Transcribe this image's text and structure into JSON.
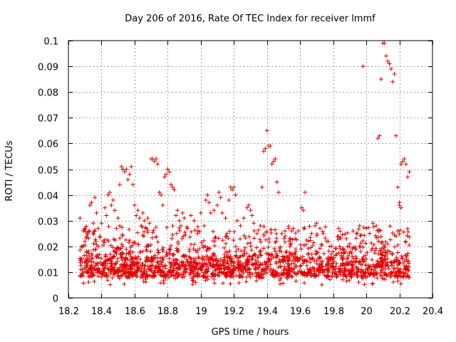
{
  "chart_data": {
    "type": "scatter",
    "title": "Day 206 of 2016, Rate Of TEC Index for receiver lmmf",
    "xlabel": "GPS time / hours",
    "ylabel": "ROTI / TECUs",
    "xlim": [
      18.2,
      20.4
    ],
    "ylim": [
      0,
      0.1
    ],
    "x_ticks": [
      18.2,
      18.4,
      18.6,
      18.8,
      19.0,
      19.2,
      19.4,
      19.6,
      19.8,
      20.0,
      20.2,
      20.4
    ],
    "x_tick_labels": [
      "18.2",
      "18.4",
      "18.6",
      "18.8",
      "19",
      "19.2",
      "19.4",
      "19.6",
      "19.8",
      "20",
      "20.2",
      "20.4"
    ],
    "y_ticks": [
      0,
      0.01,
      0.02,
      0.03,
      0.04,
      0.05,
      0.06,
      0.07,
      0.08,
      0.09,
      0.1
    ],
    "y_tick_labels": [
      "0",
      "0.01",
      "0.02",
      "0.03",
      "0.04",
      "0.05",
      "0.06",
      "0.07",
      "0.08",
      "0.09",
      "0.1"
    ],
    "grid": true,
    "marker": "+",
    "color": "#e00000",
    "series": [
      {
        "name": "ROTI",
        "points": [
          [
            18.27,
            0.031
          ],
          [
            18.28,
            0.02
          ],
          [
            18.29,
            0.026
          ],
          [
            18.3,
            0.022
          ],
          [
            18.31,
            0.018
          ],
          [
            18.32,
            0.014
          ],
          [
            18.33,
            0.036
          ],
          [
            18.34,
            0.037
          ],
          [
            18.35,
            0.029
          ],
          [
            18.36,
            0.039
          ],
          [
            18.37,
            0.033
          ],
          [
            18.38,
            0.027
          ],
          [
            18.39,
            0.024
          ],
          [
            18.4,
            0.029
          ],
          [
            18.41,
            0.022
          ],
          [
            18.42,
            0.035
          ],
          [
            18.43,
            0.032
          ],
          [
            18.44,
            0.04
          ],
          [
            18.45,
            0.041
          ],
          [
            18.46,
            0.036
          ],
          [
            18.47,
            0.038
          ],
          [
            18.48,
            0.034
          ],
          [
            18.49,
            0.027
          ],
          [
            18.5,
            0.031
          ],
          [
            18.51,
            0.044
          ],
          [
            18.52,
            0.051
          ],
          [
            18.53,
            0.05
          ],
          [
            18.54,
            0.049
          ],
          [
            18.55,
            0.05
          ],
          [
            18.56,
            0.046
          ],
          [
            18.57,
            0.048
          ],
          [
            18.58,
            0.051
          ],
          [
            18.59,
            0.044
          ],
          [
            18.6,
            0.036
          ],
          [
            18.61,
            0.032
          ],
          [
            18.62,
            0.034
          ],
          [
            18.63,
            0.031
          ],
          [
            18.64,
            0.028
          ],
          [
            18.65,
            0.033
          ],
          [
            18.66,
            0.03
          ],
          [
            18.67,
            0.027
          ],
          [
            18.68,
            0.031
          ],
          [
            18.69,
            0.029
          ],
          [
            18.7,
            0.054
          ],
          [
            18.71,
            0.054
          ],
          [
            18.72,
            0.053
          ],
          [
            18.73,
            0.054
          ],
          [
            18.74,
            0.052
          ],
          [
            18.75,
            0.041
          ],
          [
            18.76,
            0.04
          ],
          [
            18.77,
            0.036
          ],
          [
            18.78,
            0.047
          ],
          [
            18.79,
            0.048
          ],
          [
            18.8,
            0.05
          ],
          [
            18.81,
            0.049
          ],
          [
            18.82,
            0.044
          ],
          [
            18.83,
            0.043
          ],
          [
            18.84,
            0.042
          ],
          [
            18.85,
            0.032
          ],
          [
            18.86,
            0.034
          ],
          [
            18.87,
            0.03
          ],
          [
            18.88,
            0.028
          ],
          [
            18.89,
            0.033
          ],
          [
            18.9,
            0.031
          ],
          [
            18.92,
            0.027
          ],
          [
            18.94,
            0.032
          ],
          [
            18.96,
            0.03
          ],
          [
            18.98,
            0.025
          ],
          [
            19.0,
            0.033
          ],
          [
            19.02,
            0.028
          ],
          [
            19.03,
            0.038
          ],
          [
            19.04,
            0.04
          ],
          [
            19.05,
            0.037
          ],
          [
            19.06,
            0.033
          ],
          [
            19.08,
            0.034
          ],
          [
            19.1,
            0.036
          ],
          [
            19.11,
            0.041
          ],
          [
            19.12,
            0.039
          ],
          [
            19.13,
            0.033
          ],
          [
            19.15,
            0.031
          ],
          [
            19.17,
            0.038
          ],
          [
            19.18,
            0.043
          ],
          [
            19.19,
            0.042
          ],
          [
            19.2,
            0.043
          ],
          [
            19.21,
            0.04
          ],
          [
            19.22,
            0.03
          ],
          [
            19.24,
            0.028
          ],
          [
            19.26,
            0.031
          ],
          [
            19.28,
            0.035
          ],
          [
            19.29,
            0.036
          ],
          [
            19.3,
            0.034
          ],
          [
            19.31,
            0.032
          ],
          [
            19.32,
            0.029
          ],
          [
            19.34,
            0.025
          ],
          [
            19.36,
            0.028
          ],
          [
            19.37,
            0.043
          ],
          [
            19.38,
            0.057
          ],
          [
            19.39,
            0.058
          ],
          [
            19.4,
            0.065
          ],
          [
            19.41,
            0.059
          ],
          [
            19.42,
            0.059
          ],
          [
            19.43,
            0.052
          ],
          [
            19.44,
            0.053
          ],
          [
            19.45,
            0.054
          ],
          [
            19.46,
            0.045
          ],
          [
            19.47,
            0.041
          ],
          [
            19.49,
            0.025
          ],
          [
            19.51,
            0.024
          ],
          [
            19.53,
            0.027
          ],
          [
            19.55,
            0.026
          ],
          [
            19.57,
            0.023
          ],
          [
            19.59,
            0.026
          ],
          [
            19.61,
            0.035
          ],
          [
            19.62,
            0.034
          ],
          [
            19.63,
            0.041
          ],
          [
            19.65,
            0.022
          ],
          [
            19.67,
            0.025
          ],
          [
            19.69,
            0.028
          ],
          [
            19.7,
            0.029
          ],
          [
            19.72,
            0.027
          ],
          [
            19.74,
            0.025
          ],
          [
            19.76,
            0.022
          ],
          [
            19.78,
            0.02
          ],
          [
            19.8,
            0.018
          ],
          [
            19.82,
            0.017
          ],
          [
            19.84,
            0.02
          ],
          [
            19.86,
            0.019
          ],
          [
            19.88,
            0.023
          ],
          [
            19.9,
            0.021
          ],
          [
            19.92,
            0.026
          ],
          [
            19.94,
            0.025
          ],
          [
            19.96,
            0.028
          ],
          [
            19.98,
            0.09
          ],
          [
            20.0,
            0.027
          ],
          [
            20.02,
            0.025
          ],
          [
            20.04,
            0.029
          ],
          [
            20.06,
            0.028
          ],
          [
            20.07,
            0.062
          ],
          [
            20.08,
            0.063
          ],
          [
            20.09,
            0.085
          ],
          [
            20.1,
            0.099
          ],
          [
            20.11,
            0.099
          ],
          [
            20.12,
            0.094
          ],
          [
            20.13,
            0.092
          ],
          [
            20.14,
            0.091
          ],
          [
            20.15,
            0.089
          ],
          [
            20.16,
            0.084
          ],
          [
            20.17,
            0.087
          ],
          [
            20.18,
            0.063
          ],
          [
            20.19,
            0.043
          ],
          [
            20.2,
            0.037
          ],
          [
            20.21,
            0.052
          ],
          [
            20.22,
            0.053
          ],
          [
            20.23,
            0.054
          ],
          [
            20.24,
            0.052
          ],
          [
            20.25,
            0.047
          ],
          [
            20.26,
            0.049
          ],
          [
            20.2,
            0.036
          ],
          [
            20.21,
            0.035
          ],
          [
            20.19,
            0.026
          ]
        ],
        "background_band": {
          "x_start": 18.27,
          "x_end": 20.26,
          "y_min": 0.005,
          "y_max": 0.028,
          "y_dense": 0.012,
          "count": 1900,
          "seed": 7
        }
      }
    ]
  }
}
